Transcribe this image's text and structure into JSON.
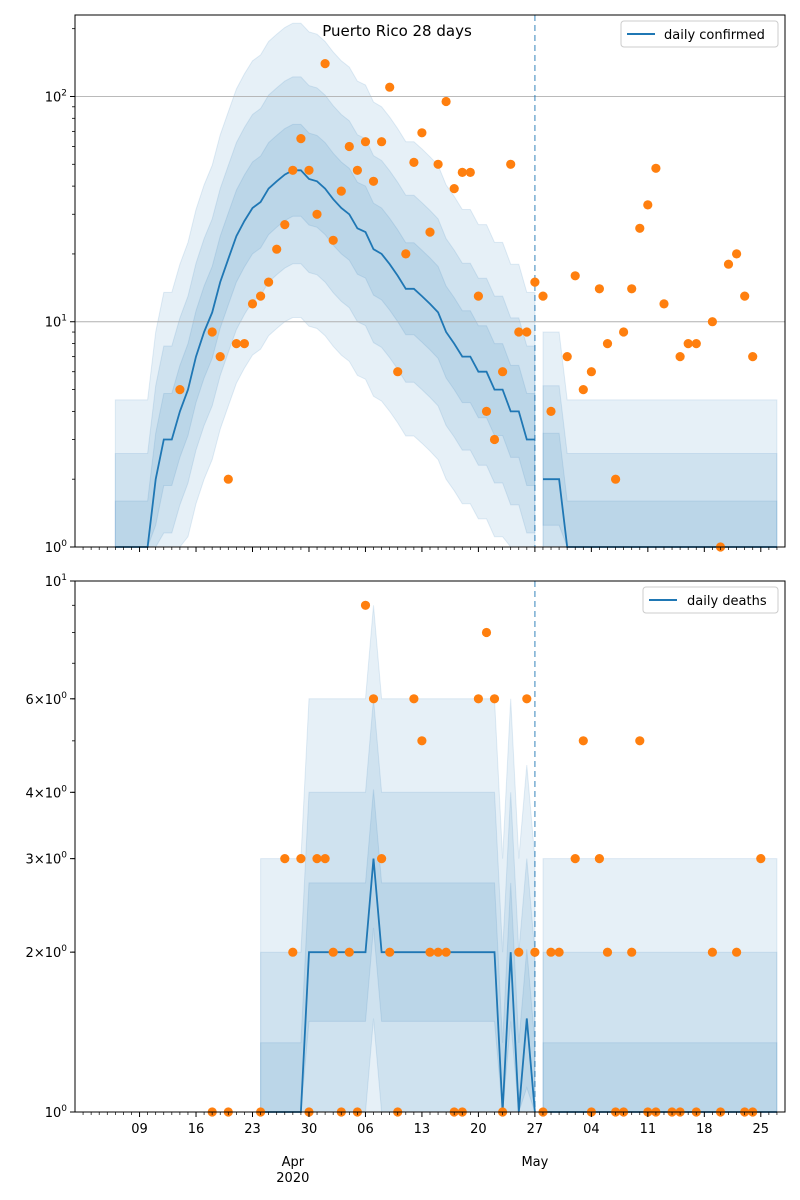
{
  "chart_data": [
    {
      "type": "line",
      "title": "Puerto Rico 28 days",
      "yscale": "log",
      "ylim": [
        1,
        230
      ],
      "ytick_labels": [
        {
          "value": 1,
          "base": "10",
          "exp": "0"
        },
        {
          "value": 10,
          "base": "10",
          "exp": "1"
        },
        {
          "value": 100,
          "base": "10",
          "exp": "2"
        }
      ],
      "grid": "horizontal major",
      "legend": {
        "label": "daily confirmed",
        "placement": "top-right"
      },
      "colors": {
        "line": "#1f77b4",
        "band": "#1f77b4",
        "points": "#ff7f0e",
        "vline": "#1f77b4",
        "grid": "#b0b0b0"
      },
      "vline_day": 57,
      "series": [
        {
          "name": "daily confirmed",
          "style": "line",
          "x_day": [
            5,
            9,
            10,
            11,
            12,
            13,
            14,
            15,
            16,
            17,
            18,
            19,
            20,
            21,
            22,
            23,
            24,
            25,
            26,
            27,
            28,
            29,
            30,
            31,
            32,
            33,
            34,
            35,
            36,
            37,
            38,
            39,
            40,
            41,
            42,
            43,
            44,
            45,
            46,
            47,
            48,
            49,
            50,
            51,
            52,
            53,
            54,
            55,
            56,
            57
          ],
          "y": [
            1,
            1,
            2,
            3,
            3,
            4,
            5,
            7,
            9,
            11,
            15,
            19,
            24,
            28,
            32,
            34,
            39,
            42,
            45,
            47,
            47,
            43,
            42,
            39,
            35,
            32,
            30,
            26,
            25,
            21,
            20,
            18,
            16,
            14,
            14,
            13,
            12,
            11,
            9,
            8,
            7,
            7,
            6,
            6,
            5,
            5,
            4,
            4,
            3,
            3
          ]
        },
        {
          "name": "after",
          "style": "line",
          "x_day": [
            58,
            59,
            60,
            61,
            62,
            63,
            64,
            65,
            66,
            67,
            68,
            69,
            70,
            71,
            72,
            73,
            74,
            75,
            76,
            77,
            78,
            79,
            80,
            81,
            82,
            83,
            84,
            85,
            86,
            87
          ],
          "y": [
            2,
            2,
            2,
            1,
            1,
            1,
            1,
            1,
            1,
            1,
            1,
            1,
            1,
            1,
            1,
            1,
            1,
            1,
            1,
            1,
            1,
            1,
            1,
            1,
            1,
            1,
            1,
            1,
            1,
            1
          ]
        },
        {
          "name": "observed",
          "style": "scatter",
          "points": [
            [
              13,
              5
            ],
            [
              17,
              9
            ],
            [
              18,
              7
            ],
            [
              19,
              2
            ],
            [
              20,
              8
            ],
            [
              21,
              8
            ],
            [
              22,
              12
            ],
            [
              23,
              13
            ],
            [
              24,
              15
            ],
            [
              25,
              21
            ],
            [
              26,
              27
            ],
            [
              27,
              47
            ],
            [
              28,
              65
            ],
            [
              29,
              47
            ],
            [
              30,
              30
            ],
            [
              31,
              140
            ],
            [
              32,
              23
            ],
            [
              33,
              38
            ],
            [
              34,
              60
            ],
            [
              35,
              47
            ],
            [
              36,
              63
            ],
            [
              37,
              42
            ],
            [
              38,
              63
            ],
            [
              39,
              110
            ],
            [
              40,
              6
            ],
            [
              41,
              20
            ],
            [
              42,
              51
            ],
            [
              43,
              69
            ],
            [
              44,
              25
            ],
            [
              45,
              50
            ],
            [
              46,
              95
            ],
            [
              47,
              39
            ],
            [
              48,
              46
            ],
            [
              49,
              46
            ],
            [
              50,
              13
            ],
            [
              51,
              4
            ],
            [
              52,
              3
            ],
            [
              53,
              6
            ],
            [
              54,
              50
            ],
            [
              55,
              9
            ],
            [
              56,
              9
            ],
            [
              57,
              15
            ],
            [
              58,
              13
            ],
            [
              59,
              4
            ],
            [
              61,
              7
            ],
            [
              62,
              16
            ],
            [
              63,
              5
            ],
            [
              64,
              6
            ],
            [
              65,
              14
            ],
            [
              66,
              8
            ],
            [
              67,
              2
            ],
            [
              68,
              9
            ],
            [
              69,
              14
            ],
            [
              70,
              26
            ],
            [
              71,
              33
            ],
            [
              72,
              48
            ],
            [
              73,
              12
            ],
            [
              75,
              7
            ],
            [
              76,
              8
            ],
            [
              77,
              8
            ],
            [
              79,
              10
            ],
            [
              80,
              1
            ],
            [
              81,
              18
            ],
            [
              82,
              20
            ],
            [
              83,
              13
            ],
            [
              84,
              7
            ]
          ]
        }
      ]
    },
    {
      "type": "line",
      "yscale": "log",
      "ylim": [
        1,
        10
      ],
      "ytick_labels": [
        {
          "value": 1,
          "base": "10",
          "exp": "0"
        },
        {
          "value": 2,
          "coef": "2",
          "base": "10",
          "exp": "0"
        },
        {
          "value": 3,
          "coef": "3",
          "base": "10",
          "exp": "0"
        },
        {
          "value": 4,
          "coef": "4",
          "base": "10",
          "exp": "0"
        },
        {
          "value": 6,
          "coef": "6",
          "base": "10",
          "exp": "0"
        },
        {
          "value": 10,
          "base": "10",
          "exp": "1"
        }
      ],
      "grid": "none",
      "legend": {
        "label": "daily deaths",
        "placement": "top-right"
      },
      "colors": {
        "line": "#1f77b4",
        "band": "#1f77b4",
        "points": "#ff7f0e",
        "vline": "#1f77b4"
      },
      "vline_day": 57,
      "x_tick_labels": [
        "09",
        "16",
        "23",
        "30",
        "06",
        "13",
        "20",
        "27",
        "04",
        "11",
        "18",
        "25"
      ],
      "x_tick_days": [
        8,
        15,
        22,
        29,
        36,
        43,
        50,
        57,
        64,
        71,
        78,
        85
      ],
      "x_month_labels": [
        {
          "label": "Apr\n2020",
          "day": 27
        },
        {
          "label": "May",
          "day": 57
        }
      ],
      "series": [
        {
          "name": "daily deaths",
          "style": "line",
          "x_day": [
            23,
            24,
            25,
            26,
            27,
            28,
            29,
            30,
            31,
            32,
            33,
            34,
            35,
            36,
            37,
            38,
            39,
            40,
            41,
            42,
            43,
            44,
            45,
            46,
            47,
            48,
            49,
            50,
            51,
            52,
            53,
            54,
            55,
            56,
            57
          ],
          "y": [
            1,
            1,
            1,
            1,
            1,
            1,
            2,
            2,
            2,
            2,
            2,
            2,
            2,
            2,
            3,
            2,
            2,
            2,
            2,
            2,
            2,
            2,
            2,
            2,
            2,
            2,
            2,
            2,
            2,
            2,
            1,
            2,
            1,
            1.5,
            1
          ]
        },
        {
          "name": "after",
          "style": "line",
          "x_day": [
            58,
            59,
            60,
            61,
            62,
            63,
            64,
            65,
            66,
            67,
            68,
            69,
            70,
            71,
            72,
            73,
            74,
            75,
            76,
            77,
            78,
            79,
            80,
            81,
            82,
            83,
            84,
            85,
            86,
            87
          ],
          "y": [
            1,
            1,
            1,
            1,
            1,
            1,
            1,
            1,
            1,
            1,
            1,
            1,
            1,
            1,
            1,
            1,
            1,
            1,
            1,
            1,
            1,
            1,
            1,
            1,
            1,
            1,
            1,
            1,
            1,
            1
          ]
        },
        {
          "name": "observed",
          "style": "scatter",
          "points": [
            [
              17,
              1
            ],
            [
              19,
              1
            ],
            [
              23,
              1
            ],
            [
              26,
              3
            ],
            [
              27,
              2
            ],
            [
              28,
              3
            ],
            [
              29,
              1
            ],
            [
              30,
              3
            ],
            [
              31,
              3
            ],
            [
              32,
              2
            ],
            [
              33,
              1
            ],
            [
              34,
              2
            ],
            [
              35,
              1
            ],
            [
              36,
              9
            ],
            [
              37,
              6
            ],
            [
              38,
              3
            ],
            [
              39,
              2
            ],
            [
              40,
              1
            ],
            [
              42,
              6
            ],
            [
              43,
              5
            ],
            [
              44,
              2
            ],
            [
              45,
              2
            ],
            [
              46,
              2
            ],
            [
              47,
              1
            ],
            [
              48,
              1
            ],
            [
              50,
              6
            ],
            [
              51,
              8
            ],
            [
              52,
              6
            ],
            [
              53,
              1
            ],
            [
              55,
              2
            ],
            [
              56,
              6
            ],
            [
              57,
              2
            ],
            [
              58,
              1
            ],
            [
              59,
              2
            ],
            [
              60,
              2
            ],
            [
              62,
              3
            ],
            [
              63,
              5
            ],
            [
              64,
              1
            ],
            [
              65,
              3
            ],
            [
              66,
              2
            ],
            [
              67,
              1
            ],
            [
              68,
              1
            ],
            [
              69,
              2
            ],
            [
              70,
              5
            ],
            [
              71,
              1
            ],
            [
              72,
              1
            ],
            [
              74,
              1
            ],
            [
              75,
              1
            ],
            [
              77,
              1
            ],
            [
              79,
              2
            ],
            [
              80,
              1
            ],
            [
              82,
              2
            ],
            [
              83,
              1
            ],
            [
              84,
              1
            ],
            [
              85,
              3
            ]
          ]
        }
      ]
    }
  ]
}
